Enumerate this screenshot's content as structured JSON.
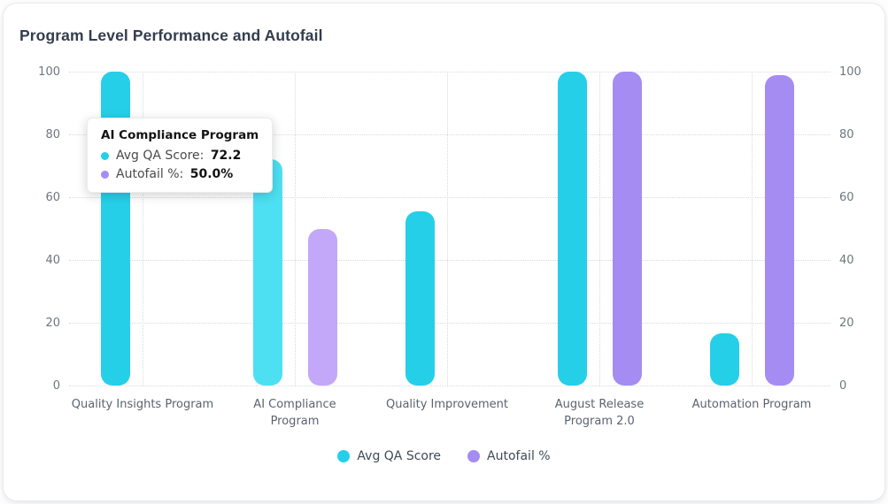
{
  "card": {
    "title": "Program Level Performance and Autofail"
  },
  "colors": {
    "qa_bar": "#26cfe8",
    "qa_bar_highlight": "#4de0f2",
    "autofail_bar": "#a48cf2",
    "autofail_bar_highlight": "#c3a7f8",
    "grid_line": "#d7dade",
    "axis_text": "#6e7680",
    "category_text": "#5b6370",
    "legend_text": "#404a56",
    "title_text": "#333d4e"
  },
  "chart_data": {
    "type": "bar",
    "title": "Program Level Performance and Autofail",
    "categories": [
      "Quality Insights Program",
      "AI Compliance Program",
      "Quality Improvement",
      "August Release Program 2.0",
      "Automation Program"
    ],
    "category_label_lines": [
      [
        "Quality Insights Program"
      ],
      [
        "AI Compliance",
        "Program"
      ],
      [
        "Quality Improvement"
      ],
      [
        "August Release",
        "Program 2.0"
      ],
      [
        "Automation Program"
      ]
    ],
    "series": [
      {
        "name": "Avg QA Score",
        "color": "#26cfe8",
        "highlight_color": "#4de0f2",
        "values": [
          100,
          72.2,
          55.5,
          100,
          16.6
        ]
      },
      {
        "name": "Autofail %",
        "color": "#a48cf2",
        "highlight_color": "#c3a7f8",
        "values": [
          0,
          50.0,
          0,
          100,
          99
        ]
      }
    ],
    "highlighted_category_index": 1,
    "y_axis_left": {
      "ticks": [
        0,
        20,
        40,
        60,
        80,
        100
      ],
      "range": [
        0,
        100
      ]
    },
    "y_axis_right": {
      "ticks": [
        0,
        20,
        40,
        60,
        80,
        100
      ],
      "range": [
        0,
        100
      ]
    },
    "grid": "dotted horizontal and vertical at category centers",
    "legend_position": "bottom"
  },
  "legend": {
    "items": [
      {
        "label": "Avg QA Score",
        "color": "#26cfe8"
      },
      {
        "label": "Autofail %",
        "color": "#a48cf2"
      }
    ]
  },
  "tooltip": {
    "title": "AI Compliance Program",
    "rows": [
      {
        "label": "Avg QA Score",
        "value": "72.2",
        "color": "#26cfe8"
      },
      {
        "label": "Autofail %",
        "value": "50.0%",
        "color": "#a48cf2"
      }
    ]
  }
}
